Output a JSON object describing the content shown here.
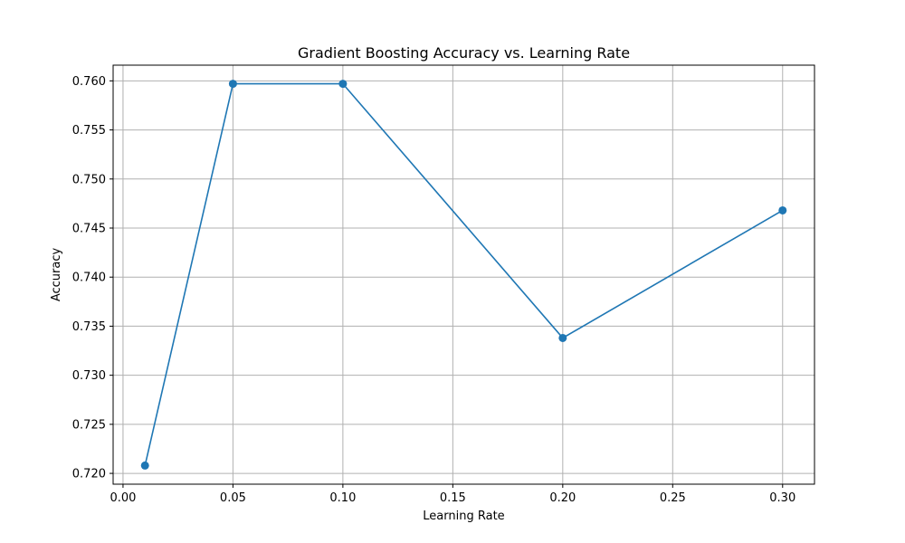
{
  "chart_data": {
    "type": "line",
    "title": "Gradient Boosting Accuracy vs. Learning Rate",
    "xlabel": "Learning Rate",
    "ylabel": "Accuracy",
    "x": [
      0.01,
      0.05,
      0.1,
      0.2,
      0.3
    ],
    "series": [
      {
        "values": [
          0.7208,
          0.7597,
          0.7597,
          0.7338,
          0.7468
        ],
        "color": "#1f77b4"
      }
    ],
    "xlim": [
      -0.0045,
      0.3145
    ],
    "ylim": [
      0.7189,
      0.7616
    ],
    "xticks": [
      0.0,
      0.05,
      0.1,
      0.15,
      0.2,
      0.25,
      0.3
    ],
    "xtick_labels": [
      "0.00",
      "0.05",
      "0.10",
      "0.15",
      "0.20",
      "0.25",
      "0.30"
    ],
    "yticks": [
      0.72,
      0.725,
      0.73,
      0.735,
      0.74,
      0.745,
      0.75,
      0.755,
      0.76
    ],
    "ytick_labels": [
      "0.720",
      "0.725",
      "0.730",
      "0.735",
      "0.740",
      "0.745",
      "0.750",
      "0.755",
      "0.760"
    ],
    "grid": true,
    "marker": "circle"
  }
}
